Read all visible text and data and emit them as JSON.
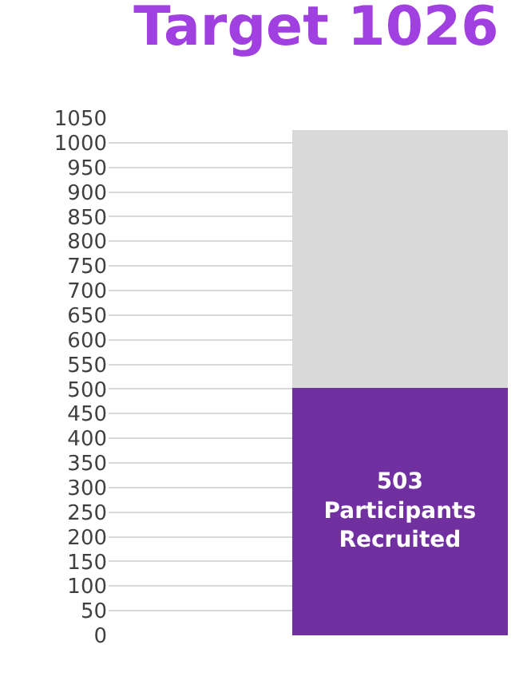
{
  "chart_data": {
    "type": "bar",
    "title": "Target 1026",
    "stacked": true,
    "categories": [
      null
    ],
    "series": [
      {
        "color": "#7030a0",
        "values": [
          503
        ],
        "value_labels": [
          "503\nParticipants\nRecruited"
        ]
      },
      {
        "color": "#d9d9d9",
        "values": [
          523
        ]
      }
    ],
    "ylim": [
      0,
      1050
    ],
    "yticks": [
      0,
      50,
      100,
      150,
      200,
      250,
      300,
      350,
      400,
      450,
      500,
      550,
      600,
      650,
      700,
      750,
      800,
      850,
      900,
      950,
      1000,
      1050
    ],
    "grid": "y"
  }
}
